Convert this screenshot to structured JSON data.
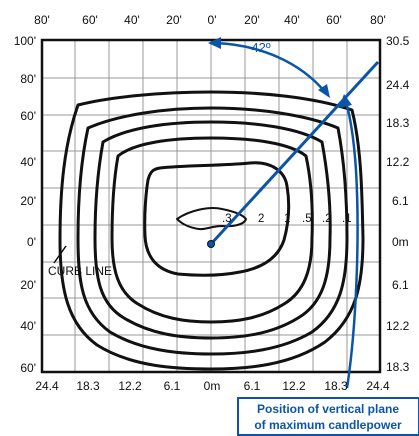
{
  "diagram": {
    "top_feet_labels": [
      "80'",
      "60'",
      "40'",
      "20'",
      "0'",
      "20'",
      "40'",
      "60'",
      "80'"
    ],
    "left_feet_labels": [
      "100'",
      "80'",
      "60'",
      "40'",
      "20'",
      "0'",
      "20'",
      "40'",
      "60'"
    ],
    "right_meter_labels": [
      "30.5",
      "24.4",
      "18.3",
      "12.2",
      "6.1",
      "0m",
      "6.1",
      "12.2",
      "18.3"
    ],
    "bottom_meter_labels": [
      "24.4",
      "18.3",
      "12.2",
      "6.1",
      "0m",
      "6.1",
      "12.2",
      "18.3",
      "24.4"
    ],
    "contour_labels": [
      ".3",
      "2",
      "1",
      ".5",
      ".2",
      ".1"
    ],
    "curb_line_label": "CURB LINE",
    "angle_label": "42º",
    "annotation_lines": [
      "Position of vertical plane",
      "of maximum candlepower"
    ],
    "colors": {
      "accent": "#0b55a8",
      "line": "#111111",
      "grid": "#999999"
    }
  }
}
